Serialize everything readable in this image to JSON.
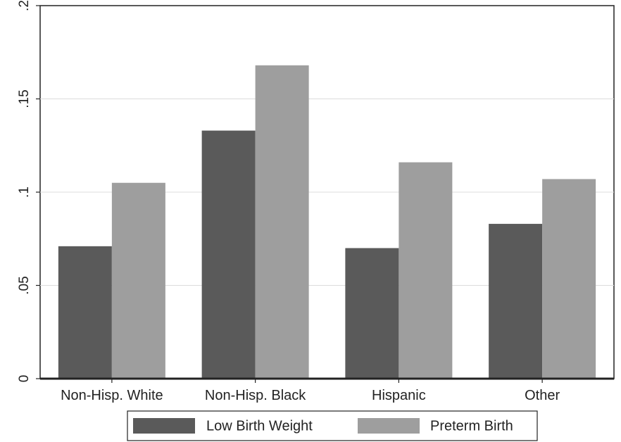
{
  "chart_data": {
    "type": "bar",
    "categories": [
      "Non-Hisp. White",
      "Non-Hisp. Black",
      "Hispanic",
      "Other"
    ],
    "series": [
      {
        "name": "Low Birth Weight",
        "values": [
          0.071,
          0.133,
          0.07,
          0.083
        ],
        "color": "#5a5a5a"
      },
      {
        "name": "Preterm Birth",
        "values": [
          0.105,
          0.168,
          0.116,
          0.107
        ],
        "color": "#9e9e9e"
      }
    ],
    "y_ticks": [
      0,
      0.05,
      0.1,
      0.15,
      0.2
    ],
    "y_tick_labels": [
      "0",
      ".05",
      ".1",
      ".15",
      ".2"
    ],
    "ylim": [
      0,
      0.2
    ],
    "grid": true,
    "legend_position": "bottom",
    "title": "",
    "xlabel": "",
    "ylabel": ""
  }
}
